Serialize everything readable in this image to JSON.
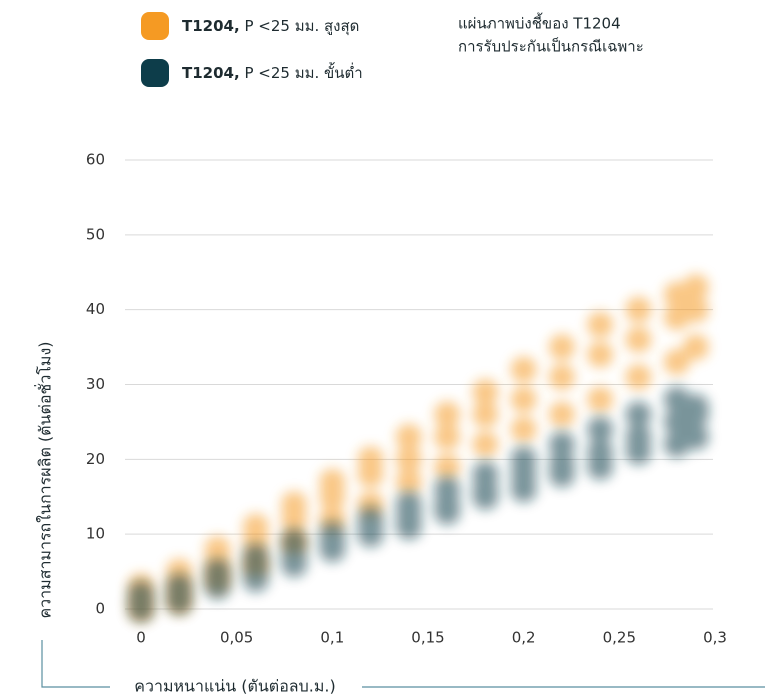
{
  "chart_data": {
    "type": "scatter",
    "annotation": [
      "แผ่นภาพบ่งชี้ของ T1204",
      "การรับประกันเป็นกรณีเฉพาะ"
    ],
    "x_label": "ความหนาแน่น (ตันต่อลบ.ม.)",
    "y_label": "ความสามารถในการผลิต (ตันต่อชั่วโมง)",
    "xlim": [
      0,
      0.3
    ],
    "ylim": [
      0,
      60
    ],
    "xticks": [
      0,
      {
        "value": 0.05,
        "label": "0,05"
      },
      {
        "value": 0.1,
        "label": "0,1"
      },
      {
        "value": 0.15,
        "label": "0,15"
      },
      {
        "value": 0.2,
        "label": "0,2"
      },
      {
        "value": 0.25,
        "label": "0,25"
      },
      {
        "value": 0.3,
        "label": "0,3"
      }
    ],
    "yticks": [
      0,
      10,
      20,
      30,
      40,
      50,
      60
    ],
    "grid": true,
    "series": [
      {
        "name": "T1204, P <25 มม. สูงสุด",
        "color": "#f59a23",
        "x": [
          0,
          0,
          0,
          0.02,
          0.02,
          0.02,
          0.04,
          0.04,
          0.04,
          0.06,
          0.06,
          0.06,
          0.08,
          0.08,
          0.08,
          0.1,
          0.1,
          0.1,
          0.12,
          0.12,
          0.12,
          0.14,
          0.14,
          0.14,
          0.16,
          0.16,
          0.16,
          0.18,
          0.18,
          0.18,
          0.2,
          0.2,
          0.2,
          0.22,
          0.22,
          0.22,
          0.24,
          0.24,
          0.24,
          0.26,
          0.26,
          0.26,
          0.28,
          0.28,
          0.28,
          0.29,
          0.29,
          0.29
        ],
        "values": [
          0,
          1,
          3,
          1,
          3,
          5,
          4,
          6,
          8,
          6,
          9,
          11,
          9,
          12,
          14,
          12,
          15,
          17,
          14,
          18,
          20,
          17,
          20,
          23,
          19,
          23,
          26,
          22,
          26,
          29,
          24,
          28,
          32,
          26,
          31,
          35,
          28,
          34,
          38,
          31,
          36,
          40,
          33,
          39,
          42,
          35,
          40,
          43
        ]
      },
      {
        "name": "T1204, P <25 มม. ขั้นต่ำ",
        "color": "#0d3d4a",
        "x": [
          0,
          0,
          0,
          0.02,
          0.02,
          0.02,
          0.04,
          0.04,
          0.04,
          0.06,
          0.06,
          0.06,
          0.08,
          0.08,
          0.08,
          0.1,
          0.1,
          0.1,
          0.12,
          0.12,
          0.12,
          0.14,
          0.14,
          0.14,
          0.16,
          0.16,
          0.16,
          0.18,
          0.18,
          0.18,
          0.2,
          0.2,
          0.2,
          0.22,
          0.22,
          0.22,
          0.24,
          0.24,
          0.24,
          0.26,
          0.26,
          0.26,
          0.28,
          0.28,
          0.28,
          0.29,
          0.29,
          0.29
        ],
        "values": [
          0,
          1,
          2,
          1,
          2,
          3,
          3,
          4,
          5,
          4,
          5.5,
          7,
          6,
          7,
          9,
          8,
          9,
          10,
          10,
          11,
          12,
          11,
          12.5,
          14,
          13,
          14,
          16,
          15,
          16,
          18,
          16,
          18,
          20,
          18,
          19.5,
          22,
          19,
          21,
          24,
          21,
          23,
          26,
          22,
          25,
          28,
          23,
          26,
          27
        ]
      }
    ]
  }
}
